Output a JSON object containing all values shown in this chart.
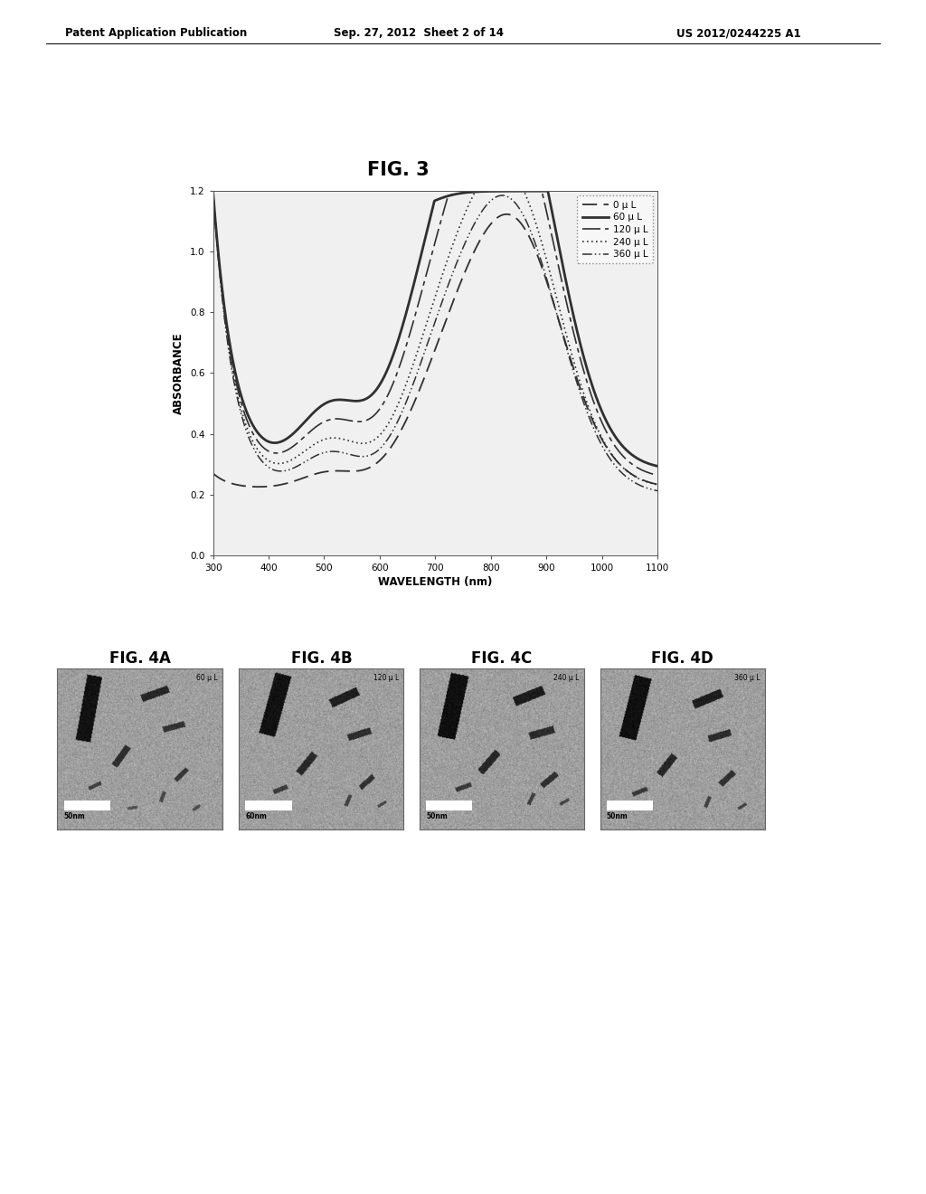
{
  "header_left": "Patent Application Publication",
  "header_mid": "Sep. 27, 2012  Sheet 2 of 14",
  "header_right": "US 2012/0244225 A1",
  "fig3_title": "FIG. 3",
  "xlabel": "WAVELENGTH (nm)",
  "ylabel": "ABSORBANCE",
  "xlim": [
    300,
    1100
  ],
  "ylim": [
    0,
    1.2
  ],
  "yticks": [
    0,
    0.2,
    0.4,
    0.6,
    0.8,
    1,
    1.2
  ],
  "xticks": [
    300,
    400,
    500,
    600,
    700,
    800,
    900,
    1000,
    1100
  ],
  "legend_labels": [
    "0 μ L",
    "60 μ L",
    "120 μ L",
    "240 μ L",
    "360 μ L"
  ],
  "fig4_titles": [
    "FIG. 4A",
    "FIG. 4B",
    "FIG. 4C",
    "FIG. 4D"
  ],
  "fig4_labels": [
    "60 μ L",
    "120 μ L",
    "240 μ L",
    "360 μ L"
  ],
  "fig4_scale": [
    "50nm",
    "60nm",
    "50nm",
    "50nm"
  ],
  "background_color": "#ffffff",
  "line_color": "#303030",
  "plot_bg": "#f0f0f0"
}
